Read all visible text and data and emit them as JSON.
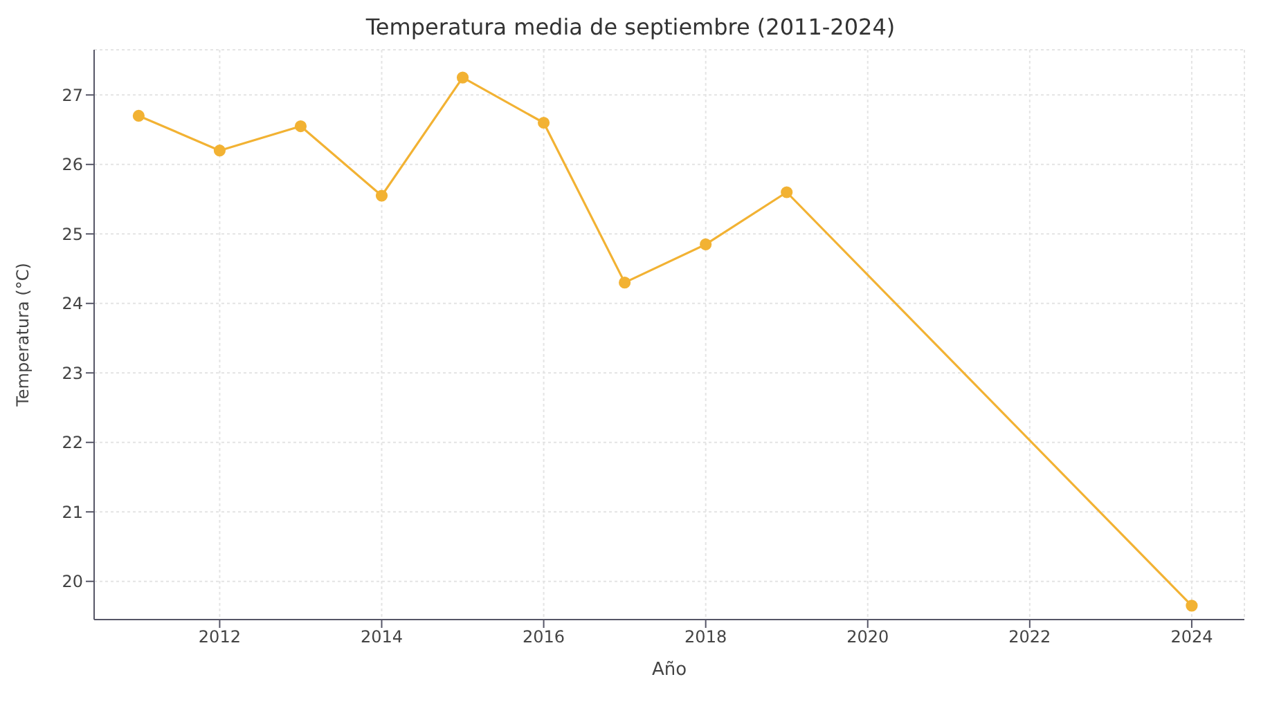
{
  "chart_data": {
    "type": "line",
    "title": "Temperatura media de septiembre (2011-2024)",
    "xlabel": "Año",
    "ylabel": "Temperatura (°C)",
    "x": [
      2011,
      2012,
      2013,
      2014,
      2015,
      2016,
      2017,
      2018,
      2019,
      2024
    ],
    "series": [
      {
        "color": "#f2b233",
        "values": [
          26.7,
          26.2,
          26.55,
          25.55,
          27.25,
          26.6,
          24.3,
          24.85,
          25.6,
          19.65
        ]
      }
    ],
    "xlim": [
      2010.45,
      2024.65
    ],
    "xticks": [
      2012,
      2014,
      2016,
      2018,
      2020,
      2022,
      2024
    ],
    "ylim": [
      19.45,
      27.65
    ],
    "yticks": [
      20,
      21,
      22,
      23,
      24,
      25,
      26,
      27
    ],
    "grid": true,
    "marker": "circle",
    "line_style": "solid"
  }
}
